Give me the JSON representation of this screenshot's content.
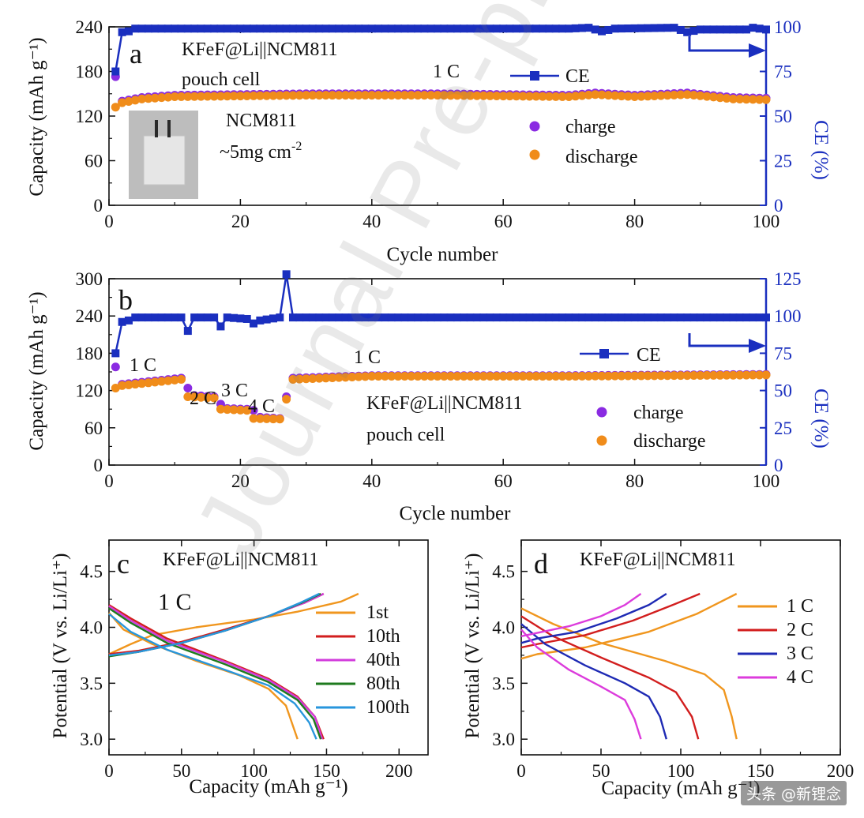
{
  "watermark": "Journal Pre-proof",
  "credit": "头条 @新锂念",
  "inset_photo_desc": "pouch-cell-photo",
  "colors": {
    "ce": "#1a2fbf",
    "charge": "#8a2be2",
    "discharge": "#f08c1a",
    "c_1st": "#f0961e",
    "c_10th": "#d21e1e",
    "c_40th": "#d23cdc",
    "c_80th": "#1e7a1e",
    "c_100th": "#2896dc",
    "d_1C": "#f0961e",
    "d_2C": "#d21e1e",
    "d_3C": "#1e2ab4",
    "d_4C": "#dc3cdc"
  },
  "chart_data": [
    {
      "id": "a",
      "type": "scatter",
      "panel_label": "a",
      "xlabel": "Cycle number",
      "ylabel": "Capacity (mAh g⁻¹)",
      "y2label": "CE (%)",
      "xlim": [
        0,
        100
      ],
      "ylim": [
        0,
        240
      ],
      "y2lim": [
        0,
        100
      ],
      "xticks": [
        "0",
        "20",
        "40",
        "60",
        "80",
        "100"
      ],
      "yticks": [
        "0",
        "60",
        "120",
        "180",
        "240"
      ],
      "y2ticks": [
        "0",
        "25",
        "50",
        "75",
        "100"
      ],
      "annotations": {
        "cell": "KFeF@Li||NCM811",
        "cell2": "pouch cell",
        "rate": "1 C",
        "cathode": "NCM811",
        "loading": "~5mg cm",
        "loading_sup": "-2"
      },
      "legend": {
        "ce": "CE",
        "charge": "charge",
        "discharge": "discharge"
      },
      "series": [
        {
          "name": "charge",
          "x_start": 1,
          "x_end": 100,
          "anchors": [
            [
              1,
              173
            ],
            [
              2,
              140
            ],
            [
              5,
              145
            ],
            [
              10,
              148
            ],
            [
              30,
              150
            ],
            [
              50,
              150
            ],
            [
              70,
              148
            ],
            [
              74,
              151
            ],
            [
              80,
              148
            ],
            [
              88,
              151
            ],
            [
              95,
              145
            ],
            [
              100,
              144
            ]
          ]
        },
        {
          "name": "discharge",
          "x_start": 1,
          "x_end": 100,
          "anchors": [
            [
              1,
              132
            ],
            [
              2,
              138
            ],
            [
              5,
              143
            ],
            [
              10,
              146
            ],
            [
              30,
              148
            ],
            [
              50,
              148
            ],
            [
              70,
              146
            ],
            [
              74,
              149
            ],
            [
              80,
              146
            ],
            [
              88,
              149
            ],
            [
              95,
              143
            ],
            [
              100,
              142
            ]
          ]
        },
        {
          "name": "CE",
          "x_start": 1,
          "x_end": 100,
          "anchors": [
            [
              1,
              75
            ],
            [
              2,
              97
            ],
            [
              3,
              97.5
            ],
            [
              4,
              99
            ],
            [
              70,
              99
            ],
            [
              73,
              99.5
            ],
            [
              75,
              97.5
            ],
            [
              77,
              99
            ],
            [
              86,
              99.5
            ],
            [
              88,
              97
            ],
            [
              90,
              98.5
            ],
            [
              97,
              98.5
            ],
            [
              98,
              99.5
            ],
            [
              100,
              98.5
            ]
          ]
        }
      ]
    },
    {
      "id": "b",
      "type": "scatter",
      "panel_label": "b",
      "xlabel": "Cycle number",
      "ylabel": "Capacity (mAh g⁻¹)",
      "y2label": "CE (%)",
      "xlim": [
        0,
        100
      ],
      "ylim": [
        0,
        300
      ],
      "y2lim": [
        0,
        125
      ],
      "xticks": [
        "0",
        "20",
        "40",
        "60",
        "80",
        "100"
      ],
      "yticks": [
        "0",
        "60",
        "120",
        "180",
        "240",
        "300"
      ],
      "y2ticks": [
        "0",
        "25",
        "50",
        "75",
        "100",
        "125"
      ],
      "annotations": {
        "cell": "KFeF@Li||NCM811",
        "cell2": "pouch cell",
        "r1": "1 C",
        "r2": "2 C",
        "r3": "3 C",
        "r4": "4 C",
        "r5": "1 C"
      },
      "legend": {
        "ce": "CE",
        "charge": "charge",
        "discharge": "discharge"
      },
      "series": [
        {
          "name": "charge",
          "x_start": 1,
          "x_end": 100,
          "anchors": [
            [
              1,
              158
            ],
            [
              2,
              130
            ],
            [
              11,
              140
            ],
            [
              12,
              124
            ],
            [
              13,
              112
            ],
            [
              16,
              110
            ],
            [
              17,
              98
            ],
            [
              18,
              91
            ],
            [
              21,
              90
            ],
            [
              22,
              88
            ],
            [
              23,
              77
            ],
            [
              26,
              75
            ],
            [
              27,
              110
            ],
            [
              28,
              140
            ],
            [
              40,
              144
            ],
            [
              70,
              144
            ],
            [
              100,
              146
            ]
          ]
        },
        {
          "name": "discharge",
          "x_start": 1,
          "x_end": 100,
          "anchors": [
            [
              1,
              124
            ],
            [
              2,
              128
            ],
            [
              11,
              138
            ],
            [
              12,
              110
            ],
            [
              16,
              108
            ],
            [
              17,
              90
            ],
            [
              21,
              88
            ],
            [
              22,
              75
            ],
            [
              26,
              74
            ],
            [
              27,
              106
            ],
            [
              28,
              138
            ],
            [
              40,
              143
            ],
            [
              70,
              143
            ],
            [
              100,
              145
            ]
          ]
        },
        {
          "name": "CE",
          "x_start": 1,
          "x_end": 100,
          "anchors": [
            [
              1,
              75
            ],
            [
              2,
              96
            ],
            [
              3,
              97
            ],
            [
              4,
              99
            ],
            [
              11,
              99
            ],
            [
              12,
              90
            ],
            [
              13,
              99
            ],
            [
              16,
              99
            ],
            [
              17,
              93
            ],
            [
              18,
              99
            ],
            [
              21,
              98
            ],
            [
              22,
              95
            ],
            [
              23,
              97
            ],
            [
              26,
              99
            ],
            [
              27,
              128
            ],
            [
              28,
              99
            ],
            [
              100,
              99
            ]
          ]
        }
      ]
    },
    {
      "id": "c",
      "type": "line",
      "panel_label": "c",
      "xlabel": "Capacity (mAh g⁻¹)",
      "ylabel": "Potential (V vs. Li/Li⁺)",
      "xlim": [
        0,
        220
      ],
      "ylim": [
        2.86,
        4.78
      ],
      "xticks": [
        "0",
        "50",
        "100",
        "150",
        "200"
      ],
      "yticks": [
        "3.0",
        "3.5",
        "4.0",
        "4.5"
      ],
      "annotations": {
        "cell": "KFeF@Li||NCM811",
        "rate": "1 C"
      },
      "series": [
        {
          "name": "1st",
          "color_key": "c_1st",
          "charge": [
            [
              0,
              3.76
            ],
            [
              15,
              3.85
            ],
            [
              30,
              3.93
            ],
            [
              60,
              4.0
            ],
            [
              100,
              4.07
            ],
            [
              130,
              4.14
            ],
            [
              160,
              4.23
            ],
            [
              172,
              4.3
            ]
          ],
          "discharge": [
            [
              0,
              4.13
            ],
            [
              10,
              3.98
            ],
            [
              30,
              3.85
            ],
            [
              60,
              3.7
            ],
            [
              90,
              3.57
            ],
            [
              110,
              3.45
            ],
            [
              122,
              3.3
            ],
            [
              130,
              3.0
            ]
          ]
        },
        {
          "name": "10th",
          "color_key": "c_10th",
          "charge": [
            [
              0,
              3.76
            ],
            [
              20,
              3.79
            ],
            [
              50,
              3.87
            ],
            [
              80,
              3.98
            ],
            [
              110,
              4.1
            ],
            [
              135,
              4.22
            ],
            [
              148,
              4.3
            ]
          ],
          "discharge": [
            [
              0,
              4.2
            ],
            [
              15,
              4.08
            ],
            [
              40,
              3.9
            ],
            [
              80,
              3.7
            ],
            [
              110,
              3.54
            ],
            [
              130,
              3.38
            ],
            [
              142,
              3.2
            ],
            [
              148,
              3.0
            ]
          ]
        },
        {
          "name": "40th",
          "color_key": "c_40th",
          "charge": [
            [
              0,
              3.75
            ],
            [
              20,
              3.78
            ],
            [
              50,
              3.86
            ],
            [
              80,
              3.97
            ],
            [
              110,
              4.1
            ],
            [
              135,
              4.22
            ],
            [
              148,
              4.3
            ]
          ],
          "discharge": [
            [
              0,
              4.19
            ],
            [
              15,
              4.06
            ],
            [
              40,
              3.88
            ],
            [
              80,
              3.69
            ],
            [
              110,
              3.53
            ],
            [
              130,
              3.37
            ],
            [
              142,
              3.2
            ],
            [
              147,
              3.0
            ]
          ]
        },
        {
          "name": "80th",
          "color_key": "c_80th",
          "charge": [
            [
              0,
              3.74
            ],
            [
              20,
              3.78
            ],
            [
              50,
              3.86
            ],
            [
              80,
              3.97
            ],
            [
              110,
              4.1
            ],
            [
              133,
              4.22
            ],
            [
              146,
              4.3
            ]
          ],
          "discharge": [
            [
              0,
              4.17
            ],
            [
              15,
              4.04
            ],
            [
              40,
              3.86
            ],
            [
              80,
              3.67
            ],
            [
              110,
              3.51
            ],
            [
              130,
              3.35
            ],
            [
              141,
              3.18
            ],
            [
              146,
              3.0
            ]
          ]
        },
        {
          "name": "100th",
          "color_key": "c_100th",
          "charge": [
            [
              0,
              3.75
            ],
            [
              20,
              3.78
            ],
            [
              50,
              3.86
            ],
            [
              80,
              3.97
            ],
            [
              110,
              4.1
            ],
            [
              132,
              4.22
            ],
            [
              145,
              4.3
            ]
          ],
          "discharge": [
            [
              0,
              4.12
            ],
            [
              15,
              3.96
            ],
            [
              40,
              3.8
            ],
            [
              80,
              3.62
            ],
            [
              110,
              3.48
            ],
            [
              128,
              3.32
            ],
            [
              138,
              3.15
            ],
            [
              143,
              3.0
            ]
          ]
        }
      ]
    },
    {
      "id": "d",
      "type": "line",
      "panel_label": "d",
      "xlabel": "Capacity (mAh g⁻¹)",
      "ylabel": "Potential (V vs. Li/Li⁺)",
      "xlim": [
        0,
        200
      ],
      "ylim": [
        2.86,
        4.78
      ],
      "xticks": [
        "0",
        "50",
        "100",
        "150",
        "200"
      ],
      "yticks": [
        "3.0",
        "3.5",
        "4.0",
        "4.5"
      ],
      "annotations": {
        "cell": "KFeF@Li||NCM811"
      },
      "series": [
        {
          "name": "1 C",
          "color_key": "d_1C",
          "charge": [
            [
              0,
              3.72
            ],
            [
              10,
              3.76
            ],
            [
              40,
              3.82
            ],
            [
              80,
              3.96
            ],
            [
              110,
              4.12
            ],
            [
              135,
              4.3
            ]
          ],
          "discharge": [
            [
              0,
              4.17
            ],
            [
              20,
              4.03
            ],
            [
              50,
              3.86
            ],
            [
              90,
              3.7
            ],
            [
              115,
              3.58
            ],
            [
              127,
              3.44
            ],
            [
              132,
              3.2
            ],
            [
              135,
              3.0
            ]
          ]
        },
        {
          "name": "2 C",
          "color_key": "d_2C",
          "charge": [
            [
              0,
              3.82
            ],
            [
              10,
              3.85
            ],
            [
              40,
              3.93
            ],
            [
              70,
              4.06
            ],
            [
              95,
              4.2
            ],
            [
              112,
              4.3
            ]
          ],
          "discharge": [
            [
              0,
              4.1
            ],
            [
              20,
              3.92
            ],
            [
              50,
              3.73
            ],
            [
              80,
              3.55
            ],
            [
              97,
              3.42
            ],
            [
              107,
              3.2
            ],
            [
              111,
              3.0
            ]
          ]
        },
        {
          "name": "3 C",
          "color_key": "d_3C",
          "charge": [
            [
              0,
              3.86
            ],
            [
              10,
              3.9
            ],
            [
              35,
              3.96
            ],
            [
              60,
              4.08
            ],
            [
              80,
              4.2
            ],
            [
              91,
              4.3
            ]
          ],
          "discharge": [
            [
              0,
              4.03
            ],
            [
              15,
              3.85
            ],
            [
              40,
              3.66
            ],
            [
              65,
              3.5
            ],
            [
              80,
              3.38
            ],
            [
              87,
              3.2
            ],
            [
              91,
              3.0
            ]
          ]
        },
        {
          "name": "4 C",
          "color_key": "d_4C",
          "charge": [
            [
              0,
              3.92
            ],
            [
              10,
              3.95
            ],
            [
              30,
              4.01
            ],
            [
              50,
              4.1
            ],
            [
              65,
              4.2
            ],
            [
              75,
              4.3
            ]
          ],
          "discharge": [
            [
              0,
              3.98
            ],
            [
              10,
              3.82
            ],
            [
              30,
              3.62
            ],
            [
              50,
              3.47
            ],
            [
              65,
              3.35
            ],
            [
              71,
              3.18
            ],
            [
              75,
              3.0
            ]
          ]
        }
      ]
    }
  ]
}
